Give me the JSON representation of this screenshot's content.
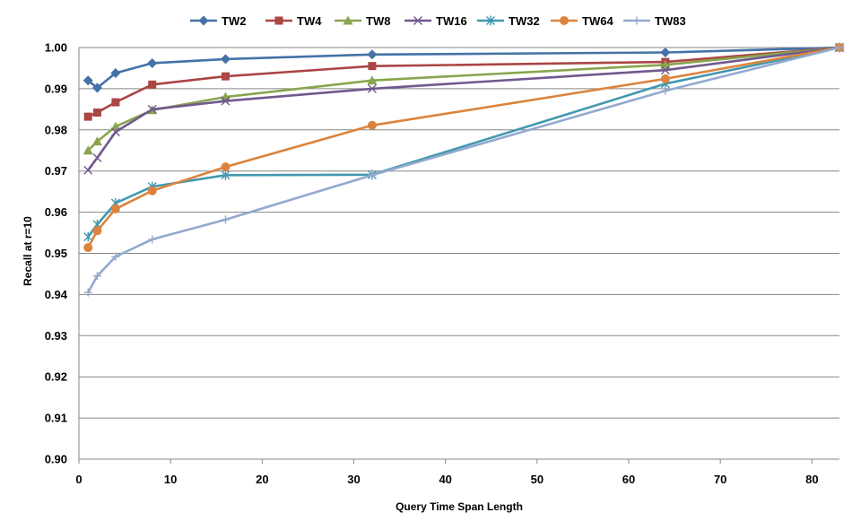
{
  "chart_data": {
    "type": "line",
    "title": "",
    "xlabel": "Query Time Span Length",
    "ylabel": "Recall at r=10",
    "xlim": [
      0,
      83
    ],
    "ylim": [
      0.9,
      1.0
    ],
    "xticks": [
      0,
      10,
      20,
      30,
      40,
      50,
      60,
      70,
      80
    ],
    "yticks": [
      0.9,
      0.91,
      0.92,
      0.93,
      0.94,
      0.95,
      0.96,
      0.97,
      0.98,
      0.99,
      1.0
    ],
    "grid": "horizontal",
    "legend": "top",
    "series": [
      {
        "name": "TW2",
        "color": "#4572a7",
        "marker": "diamond",
        "x": [
          1,
          2,
          4,
          8,
          16,
          32,
          64,
          83
        ],
        "y": [
          0.992,
          0.9902,
          0.9938,
          0.9962,
          0.9972,
          0.9983,
          0.9988,
          1.0
        ]
      },
      {
        "name": "TW4",
        "color": "#aa4643",
        "marker": "square",
        "x": [
          1,
          2,
          4,
          8,
          16,
          32,
          64,
          83
        ],
        "y": [
          0.9832,
          0.9842,
          0.9867,
          0.991,
          0.993,
          0.9955,
          0.9965,
          1.0
        ]
      },
      {
        "name": "TW8",
        "color": "#89a54e",
        "marker": "triangle",
        "x": [
          1,
          2,
          4,
          8,
          16,
          32,
          64,
          83
        ],
        "y": [
          0.975,
          0.9772,
          0.9808,
          0.9848,
          0.988,
          0.992,
          0.9958,
          1.0
        ]
      },
      {
        "name": "TW16",
        "color": "#71588f",
        "marker": "x",
        "x": [
          1,
          2,
          4,
          8,
          16,
          32,
          64,
          83
        ],
        "y": [
          0.9702,
          0.9732,
          0.9795,
          0.985,
          0.987,
          0.99,
          0.9945,
          1.0
        ]
      },
      {
        "name": "TW32",
        "color": "#4198af",
        "marker": "star",
        "x": [
          1,
          2,
          4,
          8,
          16,
          32,
          64,
          83
        ],
        "y": [
          0.954,
          0.957,
          0.9622,
          0.9662,
          0.969,
          0.9691,
          0.9912,
          1.0
        ]
      },
      {
        "name": "TW64",
        "color": "#db843d",
        "marker": "circle",
        "x": [
          1,
          2,
          4,
          8,
          16,
          32,
          64,
          83
        ],
        "y": [
          0.9514,
          0.9555,
          0.9608,
          0.9652,
          0.971,
          0.9811,
          0.9924,
          1.0
        ]
      },
      {
        "name": "TW83",
        "color": "#93a9cf",
        "marker": "plus",
        "x": [
          1,
          2,
          4,
          8,
          16,
          32,
          64,
          83
        ],
        "y": [
          0.9405,
          0.9445,
          0.9492,
          0.9534,
          0.9582,
          0.969,
          0.9895,
          1.0
        ]
      }
    ]
  }
}
